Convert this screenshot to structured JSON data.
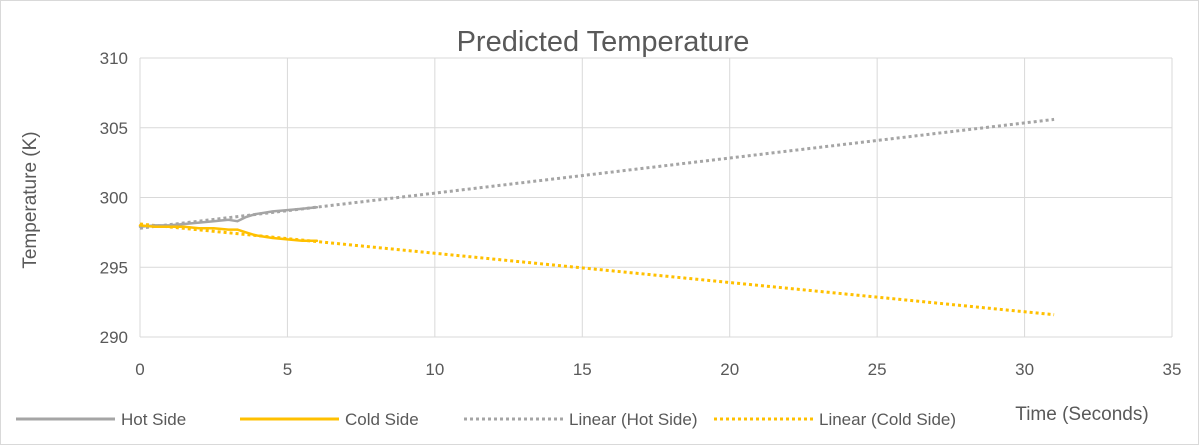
{
  "chart_data": {
    "type": "line",
    "title": "Predicted Temperature",
    "xlabel": "Time (Seconds)",
    "ylabel": "Temperature (K)",
    "xlim": [
      0,
      35
    ],
    "ylim": [
      290,
      310
    ],
    "x_ticks": [
      "0",
      "5",
      "10",
      "15",
      "20",
      "25",
      "30",
      "35"
    ],
    "y_ticks": [
      "290",
      "295",
      "300",
      "305",
      "310"
    ],
    "grid": true,
    "legend_position": "bottom",
    "series": [
      {
        "name": "Hot Side",
        "color": "#a5a5a5",
        "style": "solid",
        "x": [
          0,
          0.5,
          1.0,
          1.5,
          2.0,
          2.5,
          3.0,
          3.3,
          3.6,
          3.9,
          4.2,
          4.5,
          5.0,
          5.5,
          6.0
        ],
        "y": [
          297.9,
          298.0,
          298.0,
          298.1,
          298.2,
          298.3,
          298.4,
          298.3,
          298.6,
          298.8,
          298.9,
          299.0,
          299.1,
          299.2,
          299.3
        ]
      },
      {
        "name": "Cold Side",
        "color": "#ffc000",
        "style": "solid",
        "x": [
          0,
          0.5,
          1.0,
          1.5,
          2.0,
          2.5,
          3.0,
          3.3,
          3.6,
          3.9,
          4.2,
          4.5,
          5.0,
          5.5,
          6.0
        ],
        "y": [
          298.0,
          297.9,
          297.9,
          297.9,
          297.8,
          297.8,
          297.7,
          297.7,
          297.5,
          297.3,
          297.2,
          297.1,
          297.0,
          296.9,
          296.9
        ]
      },
      {
        "name": "Linear (Hot Side)",
        "color": "#a5a5a5",
        "style": "dotted",
        "x": [
          0,
          31
        ],
        "y": [
          297.8,
          305.6
        ]
      },
      {
        "name": "Linear (Cold Side)",
        "color": "#ffc000",
        "style": "dotted",
        "x": [
          0,
          31
        ],
        "y": [
          298.1,
          291.6
        ]
      }
    ]
  }
}
